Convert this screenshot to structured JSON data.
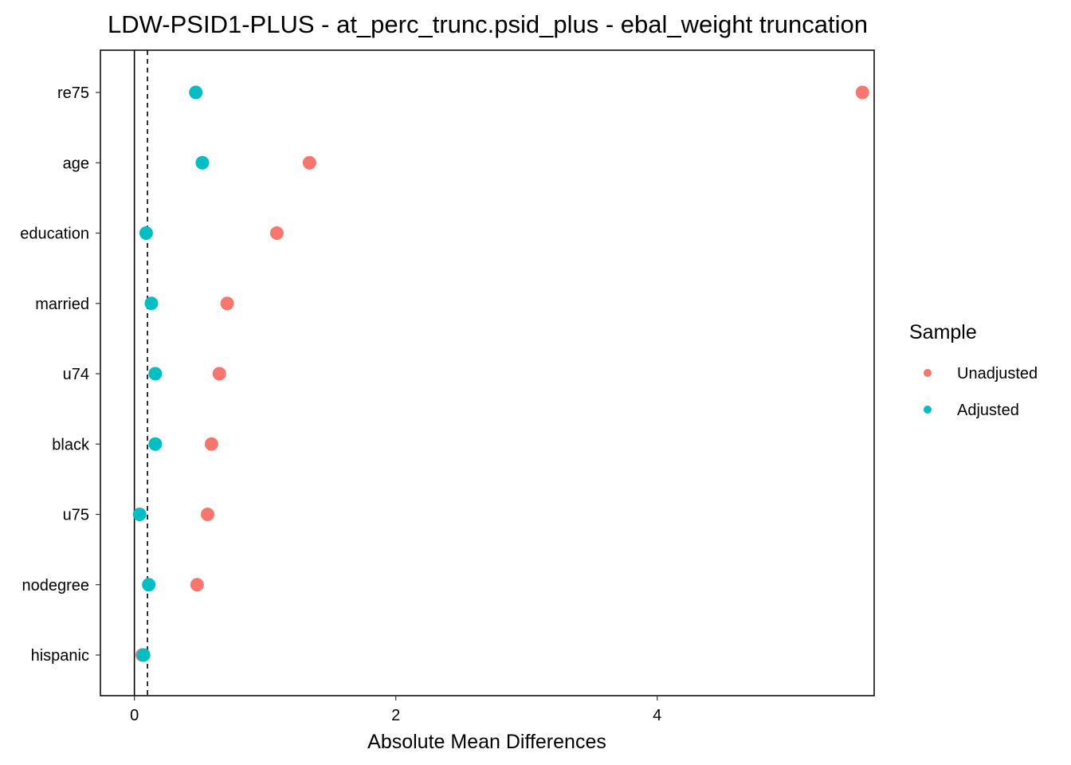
{
  "chart_data": {
    "type": "scatter",
    "title": "LDW-PSID1-PLUS - at_perc_trunc.psid_plus - ebal_weight truncation",
    "xlabel": "Absolute Mean Differences",
    "ylabel": "",
    "xlim": [
      -0.26,
      5.66
    ],
    "x_ticks": [
      0,
      2,
      4
    ],
    "x_tick_labels": [
      "0",
      "2",
      "4"
    ],
    "categories": [
      "re75",
      "age",
      "education",
      "married",
      "u74",
      "black",
      "u75",
      "nodegree",
      "hispanic"
    ],
    "reference_lines": [
      {
        "x": 0,
        "style": "solid"
      },
      {
        "x": 0.1,
        "style": "dashed"
      }
    ],
    "series": [
      {
        "name": "Unadjusted",
        "color": "#F8766D",
        "values": [
          5.57,
          1.34,
          1.09,
          0.71,
          0.65,
          0.59,
          0.56,
          0.48,
          0.06
        ]
      },
      {
        "name": "Adjusted",
        "color": "#00BFC4",
        "values": [
          0.47,
          0.52,
          0.09,
          0.13,
          0.16,
          0.16,
          0.04,
          0.11,
          0.07
        ]
      }
    ],
    "grid": false,
    "legend": {
      "title": "Sample",
      "position": "right"
    }
  }
}
